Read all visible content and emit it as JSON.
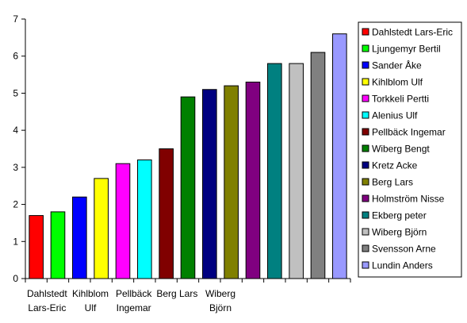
{
  "chart_data": {
    "type": "bar",
    "ylim": [
      0,
      7
    ],
    "yticks": [
      0,
      1,
      2,
      3,
      4,
      5,
      6,
      7
    ],
    "grid": false,
    "legend_position": "right",
    "category_labels": [
      {
        "line1": "Dahlstedt",
        "line2": "Lars-Eric"
      },
      {
        "line1": "Kihlblom",
        "line2": "Ulf"
      },
      {
        "line1": "Pellbäck",
        "line2": "Ingemar"
      },
      {
        "line1": "Berg Lars",
        "line2": ""
      },
      {
        "line1": "Wiberg",
        "line2": "Björn"
      }
    ],
    "series": [
      {
        "name": "Dahlstedt Lars-Eric",
        "value": 1.7,
        "color": "#ff0000"
      },
      {
        "name": "Ljungemyr Bertil",
        "value": 1.8,
        "color": "#00ff00"
      },
      {
        "name": "Sander Åke",
        "value": 2.2,
        "color": "#0000ff"
      },
      {
        "name": "Kihlblom  Ulf",
        "value": 2.7,
        "color": "#ffff00"
      },
      {
        "name": "Torkkeli Pertti",
        "value": 3.1,
        "color": "#ff00ff"
      },
      {
        "name": "Alenius Ulf",
        "value": 3.2,
        "color": "#00ffff"
      },
      {
        "name": "Pellbäck Ingemar",
        "value": 3.5,
        "color": "#800000"
      },
      {
        "name": "Wiberg Bengt",
        "value": 4.9,
        "color": "#008000"
      },
      {
        "name": "Kretz Acke",
        "value": 5.1,
        "color": "#000080"
      },
      {
        "name": "Berg Lars",
        "value": 5.2,
        "color": "#808000"
      },
      {
        "name": "Holmström Nisse",
        "value": 5.3,
        "color": "#800080"
      },
      {
        "name": "Ekberg peter",
        "value": 5.8,
        "color": "#008080"
      },
      {
        "name": "Wiberg Björn",
        "value": 5.8,
        "color": "#c0c0c0"
      },
      {
        "name": "Svensson Arne",
        "value": 6.1,
        "color": "#808080"
      },
      {
        "name": "Lundin Anders",
        "value": 6.6,
        "color": "#9999ff"
      }
    ]
  }
}
